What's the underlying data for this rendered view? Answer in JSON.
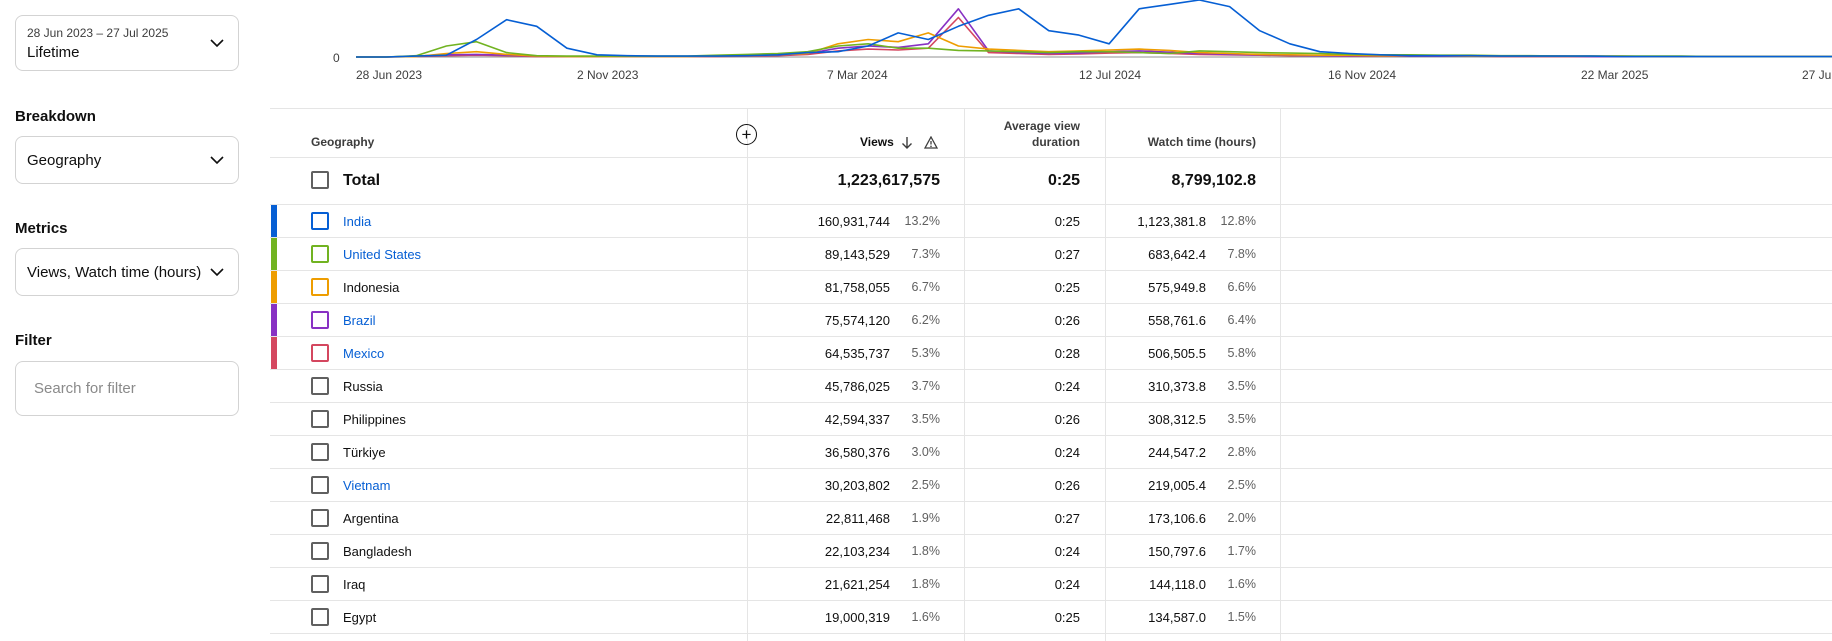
{
  "sidebar": {
    "date_range": "28 Jun 2023 – 27 Jul 2025",
    "period": "Lifetime",
    "breakdown_label": "Breakdown",
    "breakdown_value": "Geography",
    "metrics_label": "Metrics",
    "metrics_value": "Views, Watch time (hours)",
    "filter_label": "Filter",
    "filter_placeholder": "Search for filter"
  },
  "chart_data": {
    "type": "line",
    "x_tick_labels": [
      "28 Jun 2023",
      "2 Nov 2023",
      "7 Mar 2024",
      "12 Jul 2024",
      "16 Nov 2024",
      "22 Mar 2025",
      "27 Jul 2025"
    ],
    "y_tick_labels": [
      "0"
    ],
    "series": [
      {
        "name": "India",
        "color": "#065fd4",
        "values": [
          0,
          0,
          2,
          4,
          40,
          85,
          70,
          20,
          5,
          3,
          2,
          2,
          2,
          3,
          5,
          10,
          12,
          25,
          55,
          40,
          70,
          95,
          110,
          60,
          50,
          30,
          110,
          120,
          130,
          115,
          60,
          30,
          12,
          8,
          5,
          3,
          3,
          3,
          2,
          2,
          2,
          2,
          1,
          1,
          1,
          1,
          1,
          1,
          1,
          1
        ]
      },
      {
        "name": "United States",
        "color": "#71b321",
        "values": [
          0,
          0,
          3,
          25,
          35,
          10,
          3,
          2,
          2,
          2,
          2,
          2,
          4,
          6,
          8,
          12,
          25,
          30,
          20,
          20,
          15,
          14,
          12,
          10,
          12,
          12,
          10,
          8,
          14,
          12,
          10,
          9,
          8,
          6,
          5,
          5,
          4,
          4,
          3,
          3,
          2,
          2,
          2,
          2,
          2,
          1,
          1,
          1,
          1,
          1
        ]
      },
      {
        "name": "Indonesia",
        "color": "#ee9d00",
        "values": [
          0,
          0,
          1,
          8,
          12,
          6,
          2,
          1,
          1,
          1,
          1,
          1,
          2,
          3,
          5,
          8,
          30,
          40,
          35,
          55,
          25,
          18,
          15,
          12,
          14,
          16,
          18,
          15,
          10,
          8,
          6,
          5,
          4,
          4,
          3,
          3,
          3,
          2,
          2,
          2,
          2,
          2,
          2,
          1,
          1,
          1,
          1,
          1,
          1,
          1
        ]
      },
      {
        "name": "Brazil",
        "color": "#8831c3",
        "values": [
          0,
          0,
          2,
          5,
          6,
          4,
          2,
          1,
          1,
          1,
          1,
          1,
          2,
          3,
          4,
          8,
          20,
          25,
          22,
          30,
          110,
          14,
          10,
          8,
          9,
          12,
          14,
          11,
          8,
          6,
          5,
          4,
          3,
          3,
          3,
          2,
          2,
          2,
          2,
          2,
          2,
          1,
          1,
          1,
          1,
          1,
          1,
          1,
          1,
          1
        ]
      },
      {
        "name": "Mexico",
        "color": "#d4475f",
        "values": [
          0,
          0,
          1,
          3,
          4,
          3,
          1,
          1,
          1,
          1,
          1,
          1,
          1,
          2,
          3,
          6,
          14,
          18,
          16,
          20,
          90,
          10,
          8,
          6,
          7,
          9,
          10,
          8,
          6,
          5,
          4,
          3,
          3,
          2,
          2,
          2,
          2,
          2,
          1,
          1,
          1,
          1,
          1,
          1,
          1,
          1,
          1,
          1,
          1,
          1
        ]
      }
    ]
  },
  "table": {
    "headers": {
      "geography": "Geography",
      "views": "Views",
      "avg_duration_line1": "Average view",
      "avg_duration_line2": "duration",
      "watch_time": "Watch time (hours)"
    },
    "total": {
      "label": "Total",
      "views": "1,223,617,575",
      "avg": "0:25",
      "watch": "8,799,102.8"
    },
    "rows": [
      {
        "name": "India",
        "views": "160,931,744",
        "views_pct": "13.2%",
        "avg": "0:25",
        "watch": "1,123,381.8",
        "watch_pct": "12.8%",
        "color": "#065fd4",
        "link": true
      },
      {
        "name": "United States",
        "views": "89,143,529",
        "views_pct": "7.3%",
        "avg": "0:27",
        "watch": "683,642.4",
        "watch_pct": "7.8%",
        "color": "#71b321",
        "link": true
      },
      {
        "name": "Indonesia",
        "views": "81,758,055",
        "views_pct": "6.7%",
        "avg": "0:25",
        "watch": "575,949.8",
        "watch_pct": "6.6%",
        "color": "#ee9d00",
        "link": false
      },
      {
        "name": "Brazil",
        "views": "75,574,120",
        "views_pct": "6.2%",
        "avg": "0:26",
        "watch": "558,761.6",
        "watch_pct": "6.4%",
        "color": "#8831c3",
        "link": true
      },
      {
        "name": "Mexico",
        "views": "64,535,737",
        "views_pct": "5.3%",
        "avg": "0:28",
        "watch": "506,505.5",
        "watch_pct": "5.8%",
        "color": "#d4475f",
        "link": true
      },
      {
        "name": "Russia",
        "views": "45,786,025",
        "views_pct": "3.7%",
        "avg": "0:24",
        "watch": "310,373.8",
        "watch_pct": "3.5%",
        "color": "",
        "link": false
      },
      {
        "name": "Philippines",
        "views": "42,594,337",
        "views_pct": "3.5%",
        "avg": "0:26",
        "watch": "308,312.5",
        "watch_pct": "3.5%",
        "color": "",
        "link": false
      },
      {
        "name": "Türkiye",
        "views": "36,580,376",
        "views_pct": "3.0%",
        "avg": "0:24",
        "watch": "244,547.2",
        "watch_pct": "2.8%",
        "color": "",
        "link": false
      },
      {
        "name": "Vietnam",
        "views": "30,203,802",
        "views_pct": "2.5%",
        "avg": "0:26",
        "watch": "219,005.4",
        "watch_pct": "2.5%",
        "color": "",
        "link": true
      },
      {
        "name": "Argentina",
        "views": "22,811,468",
        "views_pct": "1.9%",
        "avg": "0:27",
        "watch": "173,106.6",
        "watch_pct": "2.0%",
        "color": "",
        "link": false
      },
      {
        "name": "Bangladesh",
        "views": "22,103,234",
        "views_pct": "1.8%",
        "avg": "0:24",
        "watch": "150,797.6",
        "watch_pct": "1.7%",
        "color": "",
        "link": false
      },
      {
        "name": "Iraq",
        "views": "21,621,254",
        "views_pct": "1.8%",
        "avg": "0:24",
        "watch": "144,118.0",
        "watch_pct": "1.6%",
        "color": "",
        "link": false
      },
      {
        "name": "Egypt",
        "views": "19,000,319",
        "views_pct": "1.6%",
        "avg": "0:25",
        "watch": "134,587.0",
        "watch_pct": "1.5%",
        "color": "",
        "link": false
      }
    ]
  }
}
